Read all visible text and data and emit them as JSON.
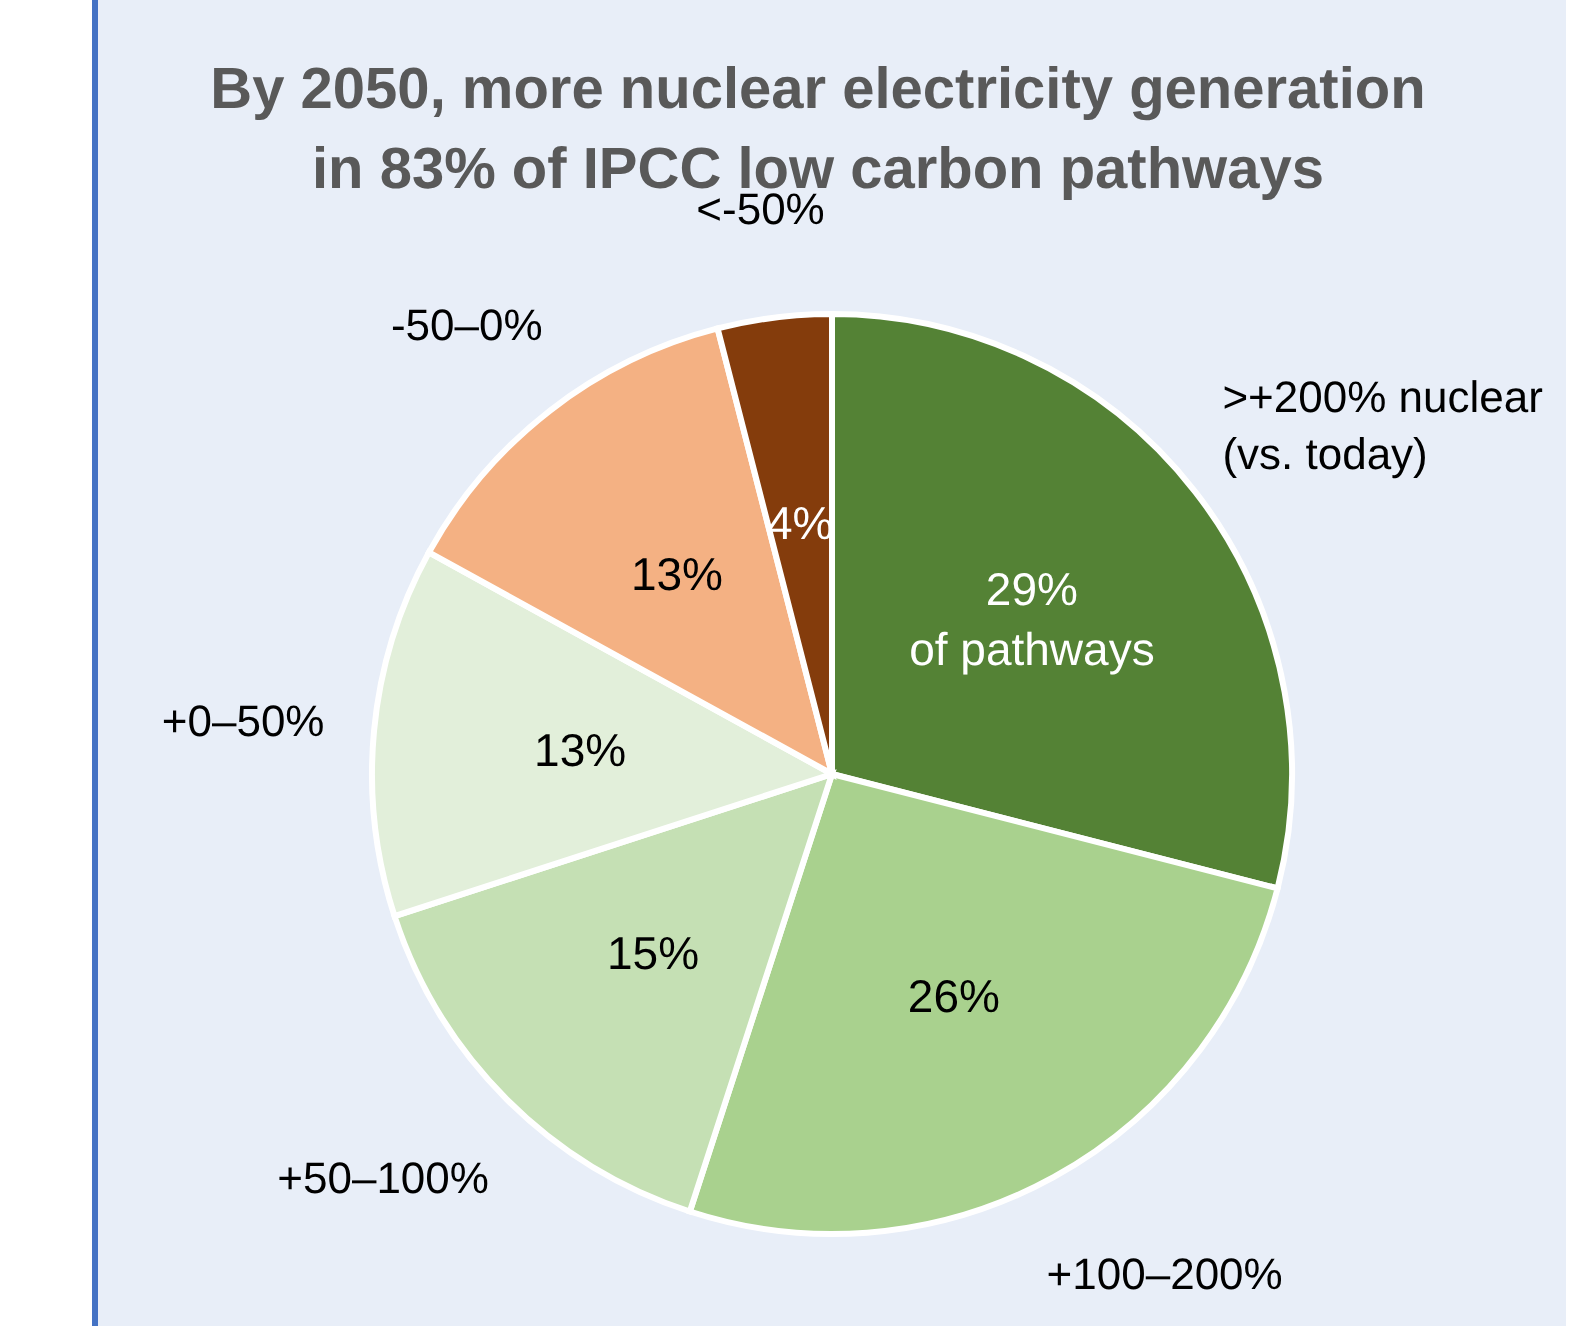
{
  "chart_data": {
    "type": "pie",
    "title": "By 2050, more nuclear electricity generation\nin 83% of IPCC low carbon pathways",
    "categories": [
      ">+200% nuclear\n(vs. today)",
      "+100–200%",
      "+50–100%",
      "+0–50%",
      "-50–0%",
      "<-50%"
    ],
    "values": [
      29,
      26,
      15,
      13,
      13,
      4
    ],
    "colors": [
      "#548235",
      "#a9d18e",
      "#c5e0b4",
      "#e2efda",
      "#f4b183",
      "#843c0c"
    ],
    "value_labels": [
      "29%\nof pathways",
      "26%",
      "15%",
      "13%",
      "13%",
      "4%"
    ]
  }
}
